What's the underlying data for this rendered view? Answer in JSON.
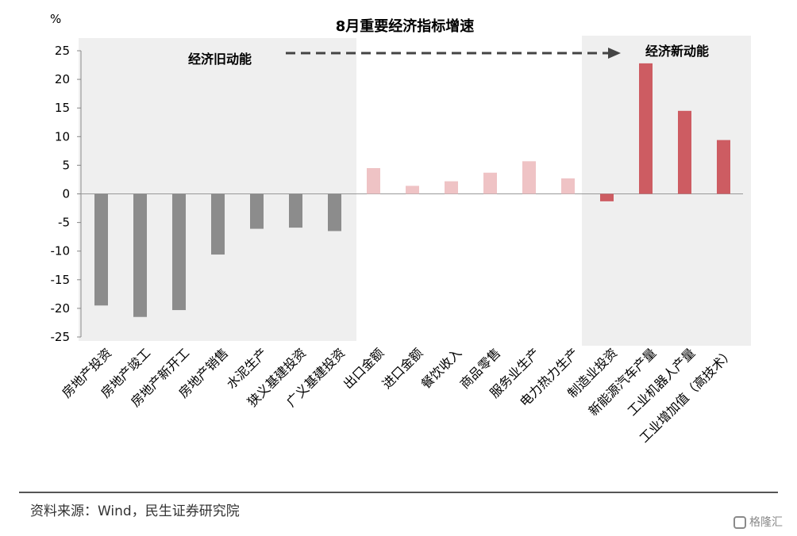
{
  "chart_data": {
    "type": "bar",
    "title": "8月重要经济指标增速",
    "unit_label": "%",
    "ylim": [
      -25,
      25
    ],
    "yticks": [
      25,
      20,
      15,
      10,
      5,
      0,
      -5,
      -10,
      -15,
      -20,
      -25
    ],
    "categories": [
      "房地产投资",
      "房地产竣工",
      "房地产新开工",
      "房地产销售",
      "水泥生产",
      "狭义基建投资",
      "广义基建投资",
      "出口金额",
      "进口金额",
      "餐饮收入",
      "商品零售",
      "服务业生产",
      "电力热力生产",
      "制造业投资",
      "新能源汽车产量",
      "工业机器人产量",
      "工业增加值（高技术）"
    ],
    "values": [
      -19.5,
      -21.5,
      -20.3,
      -10.6,
      -6.1,
      -5.9,
      -6.5,
      4.5,
      1.4,
      2.2,
      3.7,
      5.7,
      2.7,
      -1.3,
      22.8,
      14.5,
      9.4
    ],
    "groups": [
      {
        "label": "经济旧动能",
        "start": 0,
        "end": 6,
        "color": "#8c8c8c",
        "shaded": true
      },
      {
        "label": "",
        "start": 7,
        "end": 12,
        "color": "#efc3c5",
        "shaded": false
      },
      {
        "label": "经济新动能",
        "start": 13,
        "end": 16,
        "color": "#cd5c62",
        "shaded": true
      }
    ],
    "grid": false
  },
  "footer": {
    "source": "资料来源：Wind，民生证券研究院",
    "watermark": "格隆汇"
  }
}
